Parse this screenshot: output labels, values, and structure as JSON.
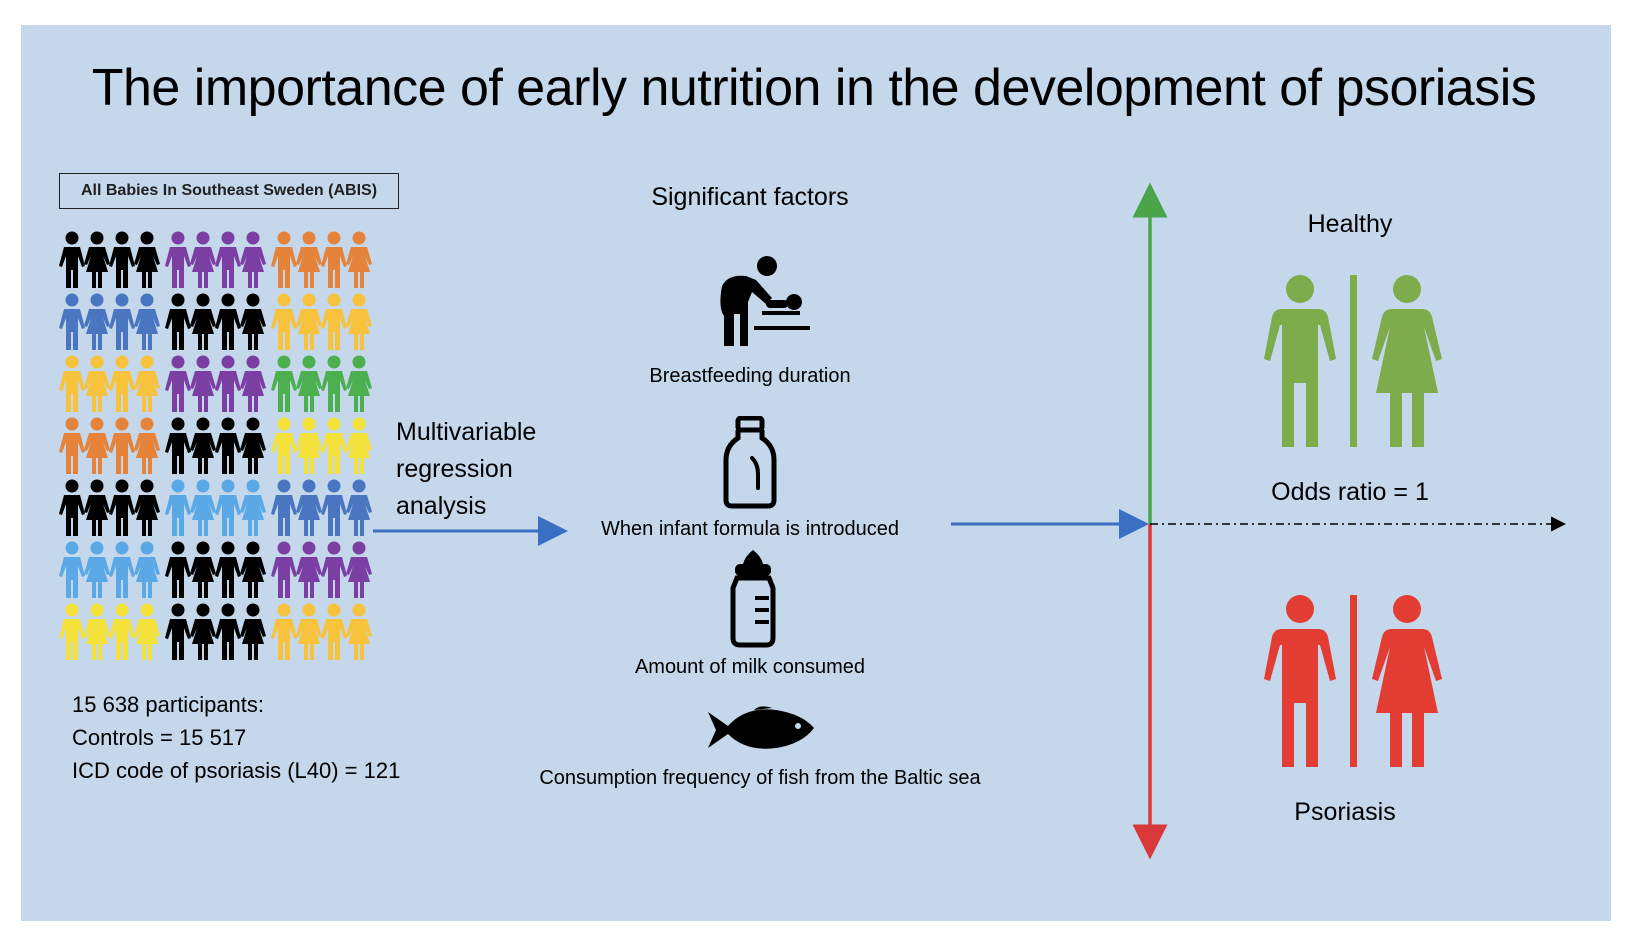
{
  "title": "The importance of early nutrition in the development of psoriasis",
  "cohort": {
    "box_label": "All Babies In Southeast Sweden (ABIS)",
    "participants": "15 638 participants:",
    "controls": "Controls = 15 517",
    "cases": "ICD code of psoriasis (L40) = 121"
  },
  "analysis": {
    "line1": "Multivariable",
    "line2": "regression",
    "line3": "analysis"
  },
  "factors": {
    "heading": "Significant factors",
    "items": [
      {
        "label": "Breastfeeding duration",
        "icon": "breastfeeding-icon"
      },
      {
        "label": "When infant formula is introduced",
        "icon": "formula-bottle-icon"
      },
      {
        "label": "Amount of milk consumed",
        "icon": "milk-bottle-icon"
      },
      {
        "label": "Consumption frequency of fish from the Baltic sea",
        "icon": "fish-icon"
      }
    ]
  },
  "outcome": {
    "healthy": "Healthy",
    "odds": "Odds ratio = 1",
    "psoriasis": "Psoriasis"
  },
  "colors": {
    "background": "#c4d7eb",
    "arrow_blue": "#3a6fc4",
    "healthy_green": "#7eab4c",
    "psoriasis_red": "#e33c33",
    "axis_green": "#4aa54a",
    "axis_red": "#d9383a",
    "people_palette": [
      "#000000",
      "#7b3ea3",
      "#e5833a",
      "#4a76c1",
      "#f7c23c",
      "#4caf50",
      "#f4e23a",
      "#5aa9e6"
    ]
  },
  "people_grid": [
    [
      "#000000",
      "#7b3ea3",
      "#e5833a"
    ],
    [
      "#4a76c1",
      "#000000",
      "#f7c23c"
    ],
    [
      "#f7c23c",
      "#7b3ea3",
      "#4caf50"
    ],
    [
      "#e5833a",
      "#000000",
      "#f4e23a"
    ],
    [
      "#000000",
      "#5aa9e6",
      "#4a76c1"
    ],
    [
      "#5aa9e6",
      "#000000",
      "#7b3ea3"
    ],
    [
      "#f4e23a",
      "#000000",
      "#f7c23c"
    ]
  ]
}
